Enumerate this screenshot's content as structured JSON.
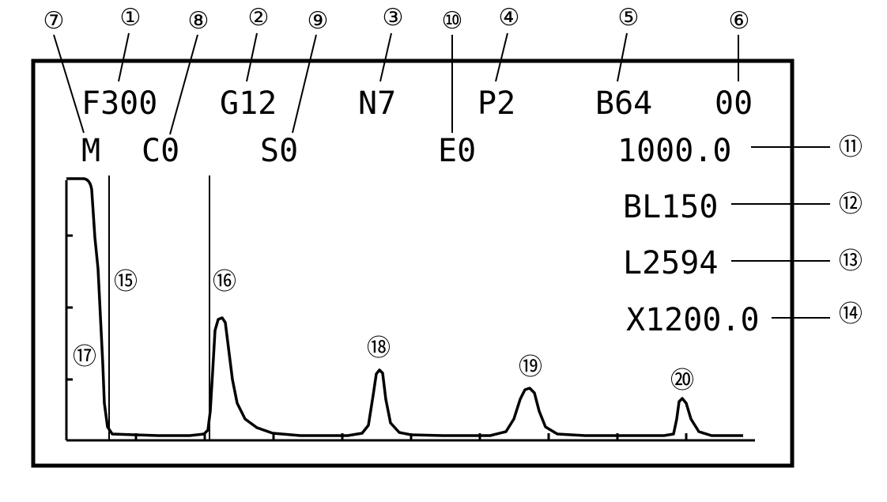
{
  "callout_markers": {
    "m1": "①",
    "m2": "②",
    "m3": "③",
    "m4": "④",
    "m5": "⑤",
    "m6": "⑥",
    "m7": "⑦",
    "m8": "⑧",
    "m9": "⑨",
    "m10": "⑩",
    "m11": "⑪",
    "m12": "⑫",
    "m13": "⑬",
    "m14": "⑭",
    "m15": "⑮",
    "m16": "⑯",
    "m17": "⑰",
    "m18": "⑱",
    "m19": "⑲",
    "m20": "⑳"
  },
  "display": {
    "row1": {
      "feed": "F300",
      "gain": "G12",
      "n": "N7",
      "p": "P2",
      "b": "B64",
      "code": "00"
    },
    "row2": {
      "m": "M",
      "c": "C0",
      "s": "S0",
      "e": "E0"
    },
    "right_panel": {
      "value1": "1000.0",
      "bl": "BL150",
      "l": "L2594",
      "x": "X1200.0"
    }
  },
  "colors": {
    "ink": "#000000",
    "background": "#ffffff"
  }
}
